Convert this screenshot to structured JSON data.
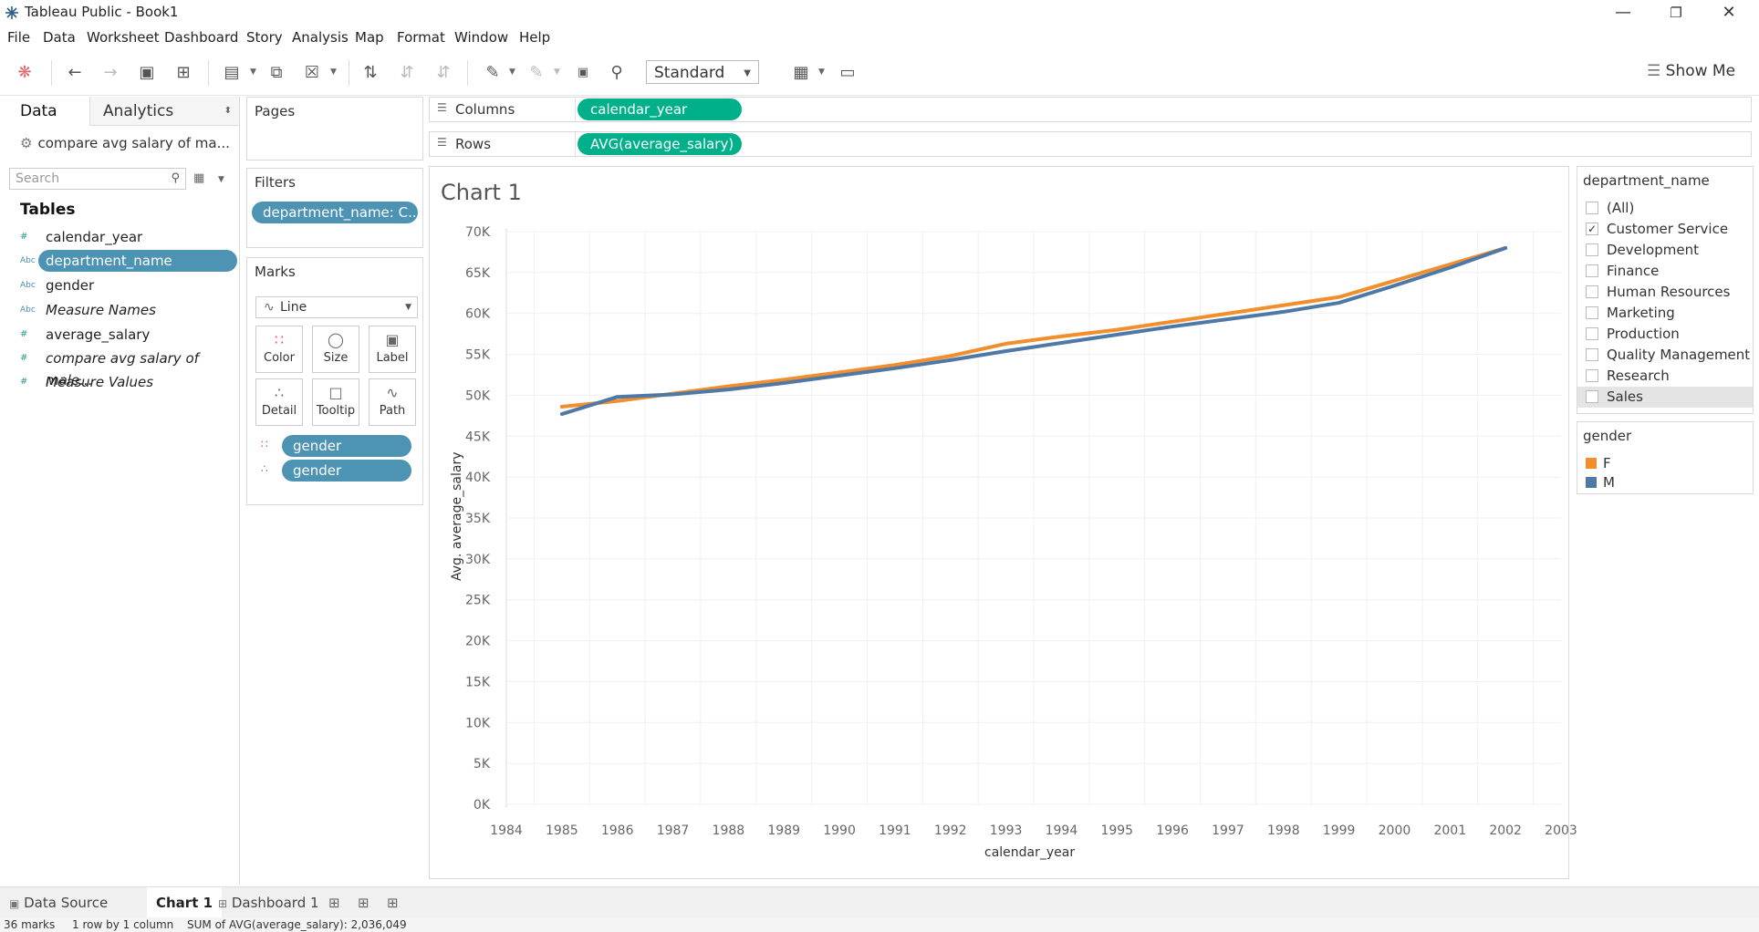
{
  "window": {
    "title": "Tableau Public - Book1"
  },
  "menu": [
    "File",
    "Data",
    "Worksheet",
    "Dashboard",
    "Story",
    "Analysis",
    "Map",
    "Format",
    "Window",
    "Help"
  ],
  "toolbar": {
    "fit_select": "Standard",
    "show_me": "Show Me"
  },
  "data_pane": {
    "tab_data": "Data",
    "tab_analytics": "Analytics",
    "datasource": "compare avg salary of ma...",
    "search_placeholder": "Search",
    "tables_heading": "Tables",
    "fields": [
      {
        "type": "#",
        "name": "calendar_year"
      },
      {
        "type": "Abc",
        "name": "department_name"
      },
      {
        "type": "Abc",
        "name": "gender"
      },
      {
        "type": "Abc",
        "name": "Measure Names"
      },
      {
        "type": "#",
        "name": "average_salary"
      },
      {
        "type": "#",
        "name": "compare avg salary of male..."
      },
      {
        "type": "#",
        "name": "Measure Values"
      }
    ]
  },
  "pages": {
    "title": "Pages"
  },
  "filters": {
    "title": "Filters",
    "pill": "department_name: C.."
  },
  "marks": {
    "title": "Marks",
    "type": "Line",
    "buttons": [
      "Color",
      "Size",
      "Label",
      "Detail",
      "Tooltip",
      "Path"
    ],
    "pills": [
      "gender",
      "gender"
    ]
  },
  "shelves": {
    "columns_label": "Columns",
    "columns_pill": "calendar_year",
    "rows_label": "Rows",
    "rows_pill": "AVG(average_salary)"
  },
  "chart_data": {
    "type": "line",
    "title": "Chart 1",
    "xlabel": "calendar_year",
    "ylabel": "Avg. average_salary",
    "x_ticks": [
      "1984",
      "1985",
      "1986",
      "1987",
      "1988",
      "1989",
      "1990",
      "1991",
      "1992",
      "1993",
      "1994",
      "1995",
      "1996",
      "1997",
      "1998",
      "1999",
      "2000",
      "2001",
      "2002",
      "2003"
    ],
    "y_ticks": [
      "0K",
      "5K",
      "10K",
      "15K",
      "20K",
      "25K",
      "30K",
      "35K",
      "40K",
      "45K",
      "50K",
      "55K",
      "60K",
      "65K",
      "70K"
    ],
    "xlim": [
      1984,
      2003
    ],
    "ylim": [
      0,
      70000
    ],
    "x": [
      1985,
      1986,
      1987,
      1988,
      1989,
      1990,
      1991,
      1992,
      1993,
      1994,
      1995,
      1996,
      1997,
      1998,
      1999,
      2000,
      2001,
      2002
    ],
    "series": [
      {
        "name": "F",
        "color": "#f28e2b",
        "values": [
          48600,
          49300,
          50200,
          51100,
          51900,
          52800,
          53700,
          54800,
          56300,
          57200,
          58000,
          59000,
          60000,
          61000,
          62000,
          64000,
          66000,
          68000
        ]
      },
      {
        "name": "M",
        "color": "#4e79a7",
        "values": [
          47700,
          49800,
          50100,
          50700,
          51500,
          52400,
          53300,
          54300,
          55400,
          56400,
          57400,
          58400,
          59300,
          60200,
          61300,
          63400,
          65600,
          68000
        ]
      }
    ]
  },
  "department_filter": {
    "title": "department_name",
    "items": [
      {
        "label": "(All)",
        "checked": false
      },
      {
        "label": "Customer Service",
        "checked": true
      },
      {
        "label": "Development",
        "checked": false
      },
      {
        "label": "Finance",
        "checked": false
      },
      {
        "label": "Human Resources",
        "checked": false
      },
      {
        "label": "Marketing",
        "checked": false
      },
      {
        "label": "Production",
        "checked": false
      },
      {
        "label": "Quality Management",
        "checked": false
      },
      {
        "label": "Research",
        "checked": false
      },
      {
        "label": "Sales",
        "checked": false
      }
    ]
  },
  "gender_legend": {
    "title": "gender",
    "items": [
      {
        "label": "F",
        "color": "#f28e2b"
      },
      {
        "label": "M",
        "color": "#4e79a7"
      }
    ]
  },
  "bottom_tabs": {
    "data_source": "Data Source",
    "chart": "Chart 1",
    "dashboard": "Dashboard 1"
  },
  "status": {
    "marks": "36 marks",
    "layout": "1 row by 1 column",
    "sum": "SUM of AVG(average_salary): 2,036,049"
  }
}
